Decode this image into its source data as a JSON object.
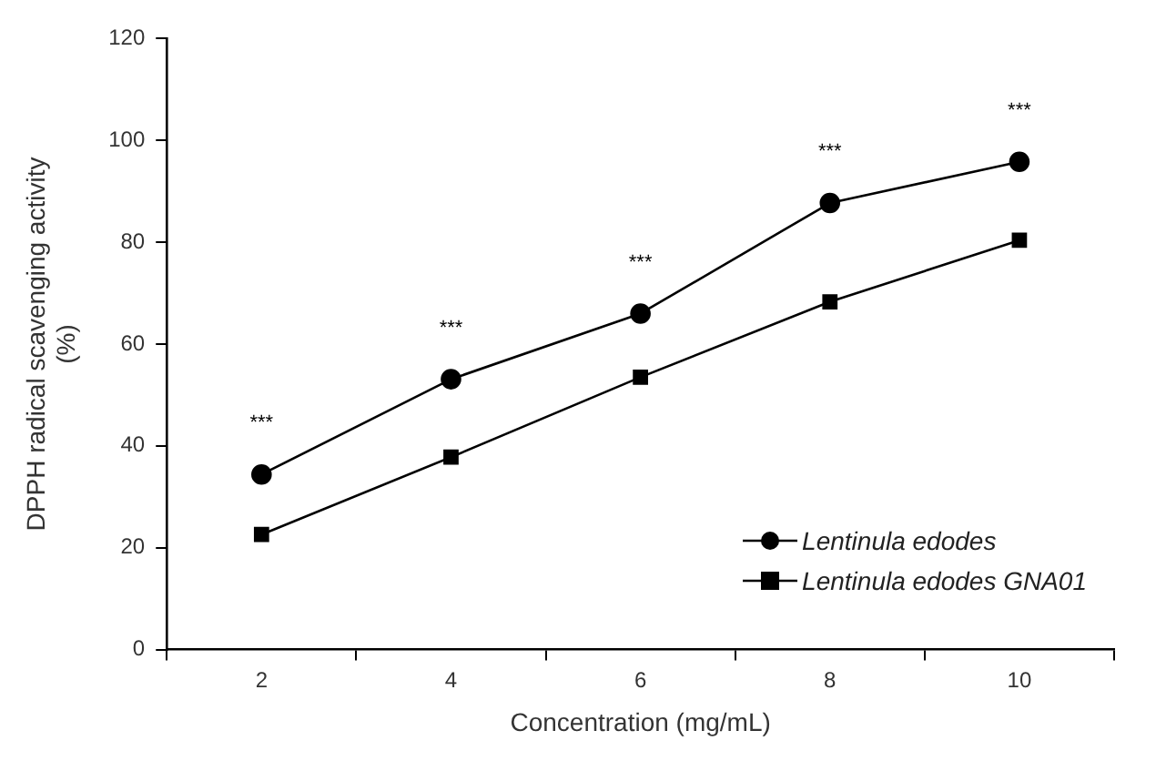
{
  "chart_data": {
    "type": "line",
    "xlabel": "Concentration (mg/mL)",
    "ylabel": "DPPH radical scavenging activity (%)",
    "categories": [
      "2",
      "4",
      "6",
      "8",
      "10"
    ],
    "series": [
      {
        "name": "Lentinula edodes",
        "color": "#000000",
        "marker": "circle",
        "values": [
          34.4,
          53.1,
          66.0,
          87.7,
          95.8
        ]
      },
      {
        "name": "Lentinula edodes GNA01",
        "color": "#000000",
        "marker": "square",
        "values": [
          22.6,
          37.8,
          53.5,
          68.3,
          80.4
        ]
      }
    ],
    "ylim": [
      0,
      120
    ],
    "yticks": [
      0,
      20,
      40,
      60,
      80,
      100,
      120
    ],
    "grid": false,
    "legend": "bottom right",
    "line_style": "solid",
    "annotations": [
      "***",
      "***",
      "***",
      "***",
      "***"
    ]
  }
}
